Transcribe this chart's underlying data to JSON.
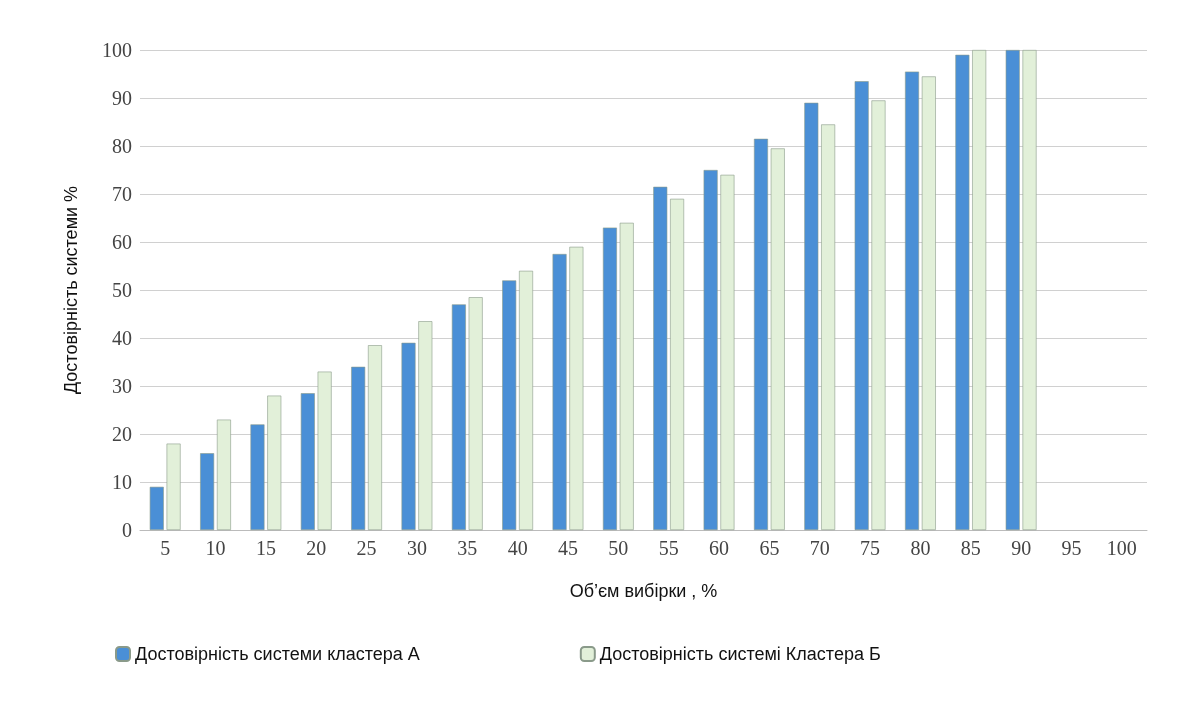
{
  "chart_data": {
    "type": "bar",
    "xlabel": "Об’єм вибірки , %",
    "ylabel": "Достовірність системи %",
    "categories": [
      "5",
      "10",
      "15",
      "20",
      "25",
      "30",
      "35",
      "40",
      "45",
      "50",
      "55",
      "60",
      "65",
      "70",
      "75",
      "80",
      "85",
      "90",
      "95",
      "100"
    ],
    "series": [
      {
        "name": "Достовірність системи кластера А",
        "color": "#4a8fd6",
        "values": [
          9,
          16,
          22,
          28.5,
          34,
          39,
          47,
          52,
          57.5,
          63,
          71.5,
          75,
          81.5,
          89,
          93.5,
          95.5,
          99,
          100,
          null,
          null
        ]
      },
      {
        "name": "Достовірність системі Кластера Б",
        "color": "#e2f0d9",
        "values": [
          18,
          23,
          28,
          33,
          38.5,
          43.5,
          48.5,
          54,
          59,
          64,
          69,
          74,
          79.5,
          84.5,
          89.5,
          94.5,
          100,
          100,
          null,
          null
        ]
      }
    ],
    "ylim": [
      0,
      100
    ],
    "yticks": [
      0,
      10,
      20,
      30,
      40,
      50,
      60,
      70,
      80,
      90,
      100
    ],
    "grid": "y",
    "legend": "bottom"
  }
}
